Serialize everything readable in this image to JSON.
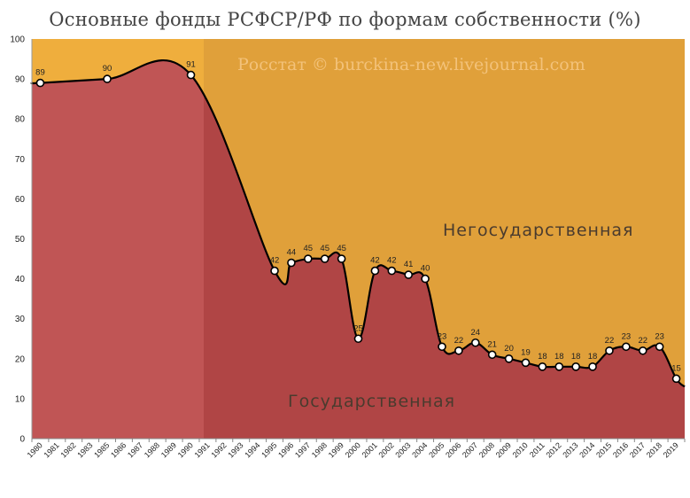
{
  "title": "Основные фонды РСФСР/РФ по формам собственности (%)",
  "watermark": "Росстат © burckina-new.livejournal.com",
  "colors": {
    "state_area": "#b04545",
    "nonstate_area": "#e0a03a",
    "highlight_state": "#c05555",
    "highlight_nonstate": "#efae3d",
    "line": "#000000"
  },
  "chart_data": {
    "type": "area",
    "ylim": [
      0,
      100
    ],
    "yticks": [
      0,
      10,
      20,
      30,
      40,
      50,
      60,
      70,
      80,
      90,
      100
    ],
    "grid": false,
    "categories": [
      "1980",
      "1981",
      "1982",
      "1983",
      "1985",
      "1986",
      "1987",
      "1988",
      "1989",
      "1990",
      "1991",
      "1992",
      "1993",
      "1994",
      "1995",
      "1996",
      "1997",
      "1998",
      "1999",
      "2000",
      "2001",
      "2002",
      "2003",
      "2004",
      "2005",
      "2006",
      "2007",
      "2008",
      "2009",
      "2010",
      "2011",
      "2012",
      "2013",
      "2014",
      "2015",
      "2016",
      "2017",
      "2018",
      "2019"
    ],
    "series": [
      {
        "name": "Государственная",
        "points": [
          {
            "x": "1980",
            "y": 89
          },
          {
            "x": "1985",
            "y": 90
          },
          {
            "x": "1990",
            "y": 91
          },
          {
            "x": "1995",
            "y": 42
          },
          {
            "x": "1996",
            "y": 44
          },
          {
            "x": "1997",
            "y": 45
          },
          {
            "x": "1998",
            "y": 45
          },
          {
            "x": "1999",
            "y": 45
          },
          {
            "x": "2000",
            "y": 25
          },
          {
            "x": "2001",
            "y": 42
          },
          {
            "x": "2002",
            "y": 42
          },
          {
            "x": "2003",
            "y": 41
          },
          {
            "x": "2004",
            "y": 40
          },
          {
            "x": "2005",
            "y": 23
          },
          {
            "x": "2006",
            "y": 22
          },
          {
            "x": "2007",
            "y": 24
          },
          {
            "x": "2008",
            "y": 21
          },
          {
            "x": "2009",
            "y": 20
          },
          {
            "x": "2010",
            "y": 19
          },
          {
            "x": "2011",
            "y": 18
          },
          {
            "x": "2012",
            "y": 18
          },
          {
            "x": "2013",
            "y": 18
          },
          {
            "x": "2014",
            "y": 18
          },
          {
            "x": "2015",
            "y": 22
          },
          {
            "x": "2016",
            "y": 23
          },
          {
            "x": "2017",
            "y": 22
          },
          {
            "x": "2018",
            "y": 23
          },
          {
            "x": "2019",
            "y": 15
          }
        ]
      },
      {
        "name": "Негосударственная",
        "complement_of": "Государственная"
      }
    ]
  }
}
